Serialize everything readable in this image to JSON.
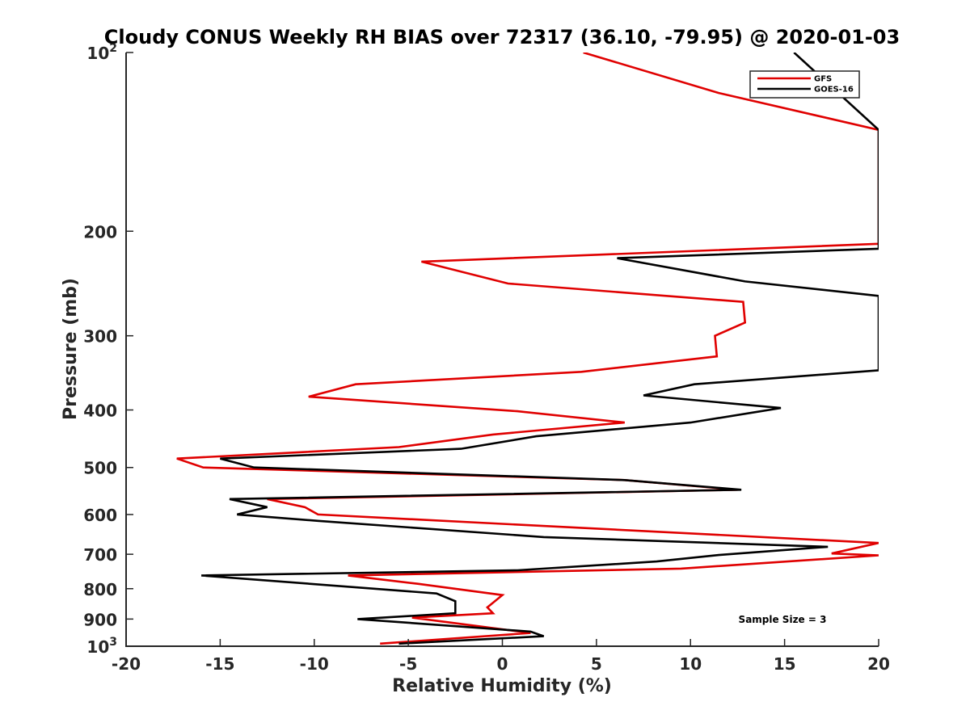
{
  "chart_data": {
    "type": "line",
    "title": "Cloudy CONUS Weekly RH BIAS over 72317 (36.10, -79.95) @ 2020-01-03",
    "xlabel": "Relative Humidity (%)",
    "ylabel": "Pressure (mb)",
    "xlim": [
      -20,
      20
    ],
    "ylim": [
      100,
      1000
    ],
    "y_scale": "log",
    "y_reversed": true,
    "x_ticks": [
      "-20",
      "-15",
      "-10",
      "-5",
      "0",
      "5",
      "10",
      "15",
      "20"
    ],
    "y_ticks": [
      {
        "value": 100,
        "base": "10",
        "exp": "2"
      },
      {
        "value": 200,
        "label": "200"
      },
      {
        "value": 300,
        "label": "300"
      },
      {
        "value": 400,
        "label": "400"
      },
      {
        "value": 500,
        "label": "500"
      },
      {
        "value": 600,
        "label": "600"
      },
      {
        "value": 700,
        "label": "700"
      },
      {
        "value": 800,
        "label": "800"
      },
      {
        "value": 900,
        "label": "900"
      },
      {
        "value": 1000,
        "base": "10",
        "exp": "3"
      }
    ],
    "legend_position": "top-right",
    "annotation": "Sample Size = 3",
    "series": [
      {
        "name": "GFS",
        "color": "#e00000",
        "points": [
          [
            4.3,
            100
          ],
          [
            11.5,
            117
          ],
          [
            20,
            135
          ],
          [
            20,
            210
          ],
          [
            -4.3,
            225
          ],
          [
            0.3,
            245
          ],
          [
            12.8,
            263
          ],
          [
            12.9,
            285
          ],
          [
            11.3,
            300
          ],
          [
            11.4,
            325
          ],
          [
            4.2,
            345
          ],
          [
            -7.8,
            362
          ],
          [
            -10.3,
            380
          ],
          [
            0.8,
            402
          ],
          [
            6.5,
            420
          ],
          [
            -0.5,
            440
          ],
          [
            -5.5,
            462
          ],
          [
            -17.3,
            483
          ],
          [
            -15.9,
            500
          ],
          [
            6.5,
            525
          ],
          [
            12.5,
            545
          ],
          [
            -12.5,
            565
          ],
          [
            -10.5,
            583
          ],
          [
            -9.8,
            600
          ],
          [
            20,
            670
          ],
          [
            17.5,
            698
          ],
          [
            20,
            703
          ],
          [
            9.5,
            740
          ],
          [
            -8.2,
            760
          ],
          [
            -4.5,
            785
          ],
          [
            0,
            820
          ],
          [
            -0.8,
            860
          ],
          [
            -0.5,
            880
          ],
          [
            -4.8,
            895
          ],
          [
            1.5,
            950
          ],
          [
            -6.5,
            990
          ]
        ]
      },
      {
        "name": "GOES-16",
        "color": "#000000",
        "points": [
          [
            15.5,
            100
          ],
          [
            20,
            135
          ],
          [
            20,
            214
          ],
          [
            6.1,
            222
          ],
          [
            12.9,
            243
          ],
          [
            20,
            257
          ],
          [
            20,
            343
          ],
          [
            10.2,
            362
          ],
          [
            7.5,
            378
          ],
          [
            14.8,
            397
          ],
          [
            10.0,
            420
          ],
          [
            1.8,
            443
          ],
          [
            -2.2,
            465
          ],
          [
            -15,
            483
          ],
          [
            -13.2,
            500
          ],
          [
            6.5,
            525
          ],
          [
            12.7,
            545
          ],
          [
            -14.5,
            565
          ],
          [
            -12.5,
            583
          ],
          [
            -14.1,
            600
          ],
          [
            -9.8,
            615
          ],
          [
            2.2,
            655
          ],
          [
            17.3,
            680
          ],
          [
            11.5,
            702
          ],
          [
            8.2,
            720
          ],
          [
            0.8,
            745
          ],
          [
            -16,
            760
          ],
          [
            -3.5,
            815
          ],
          [
            -2.5,
            840
          ],
          [
            -2.5,
            860
          ],
          [
            -2.5,
            880
          ],
          [
            -7.7,
            900
          ],
          [
            1.5,
            945
          ],
          [
            2.2,
            962
          ],
          [
            -5.5,
            990
          ]
        ]
      }
    ]
  }
}
